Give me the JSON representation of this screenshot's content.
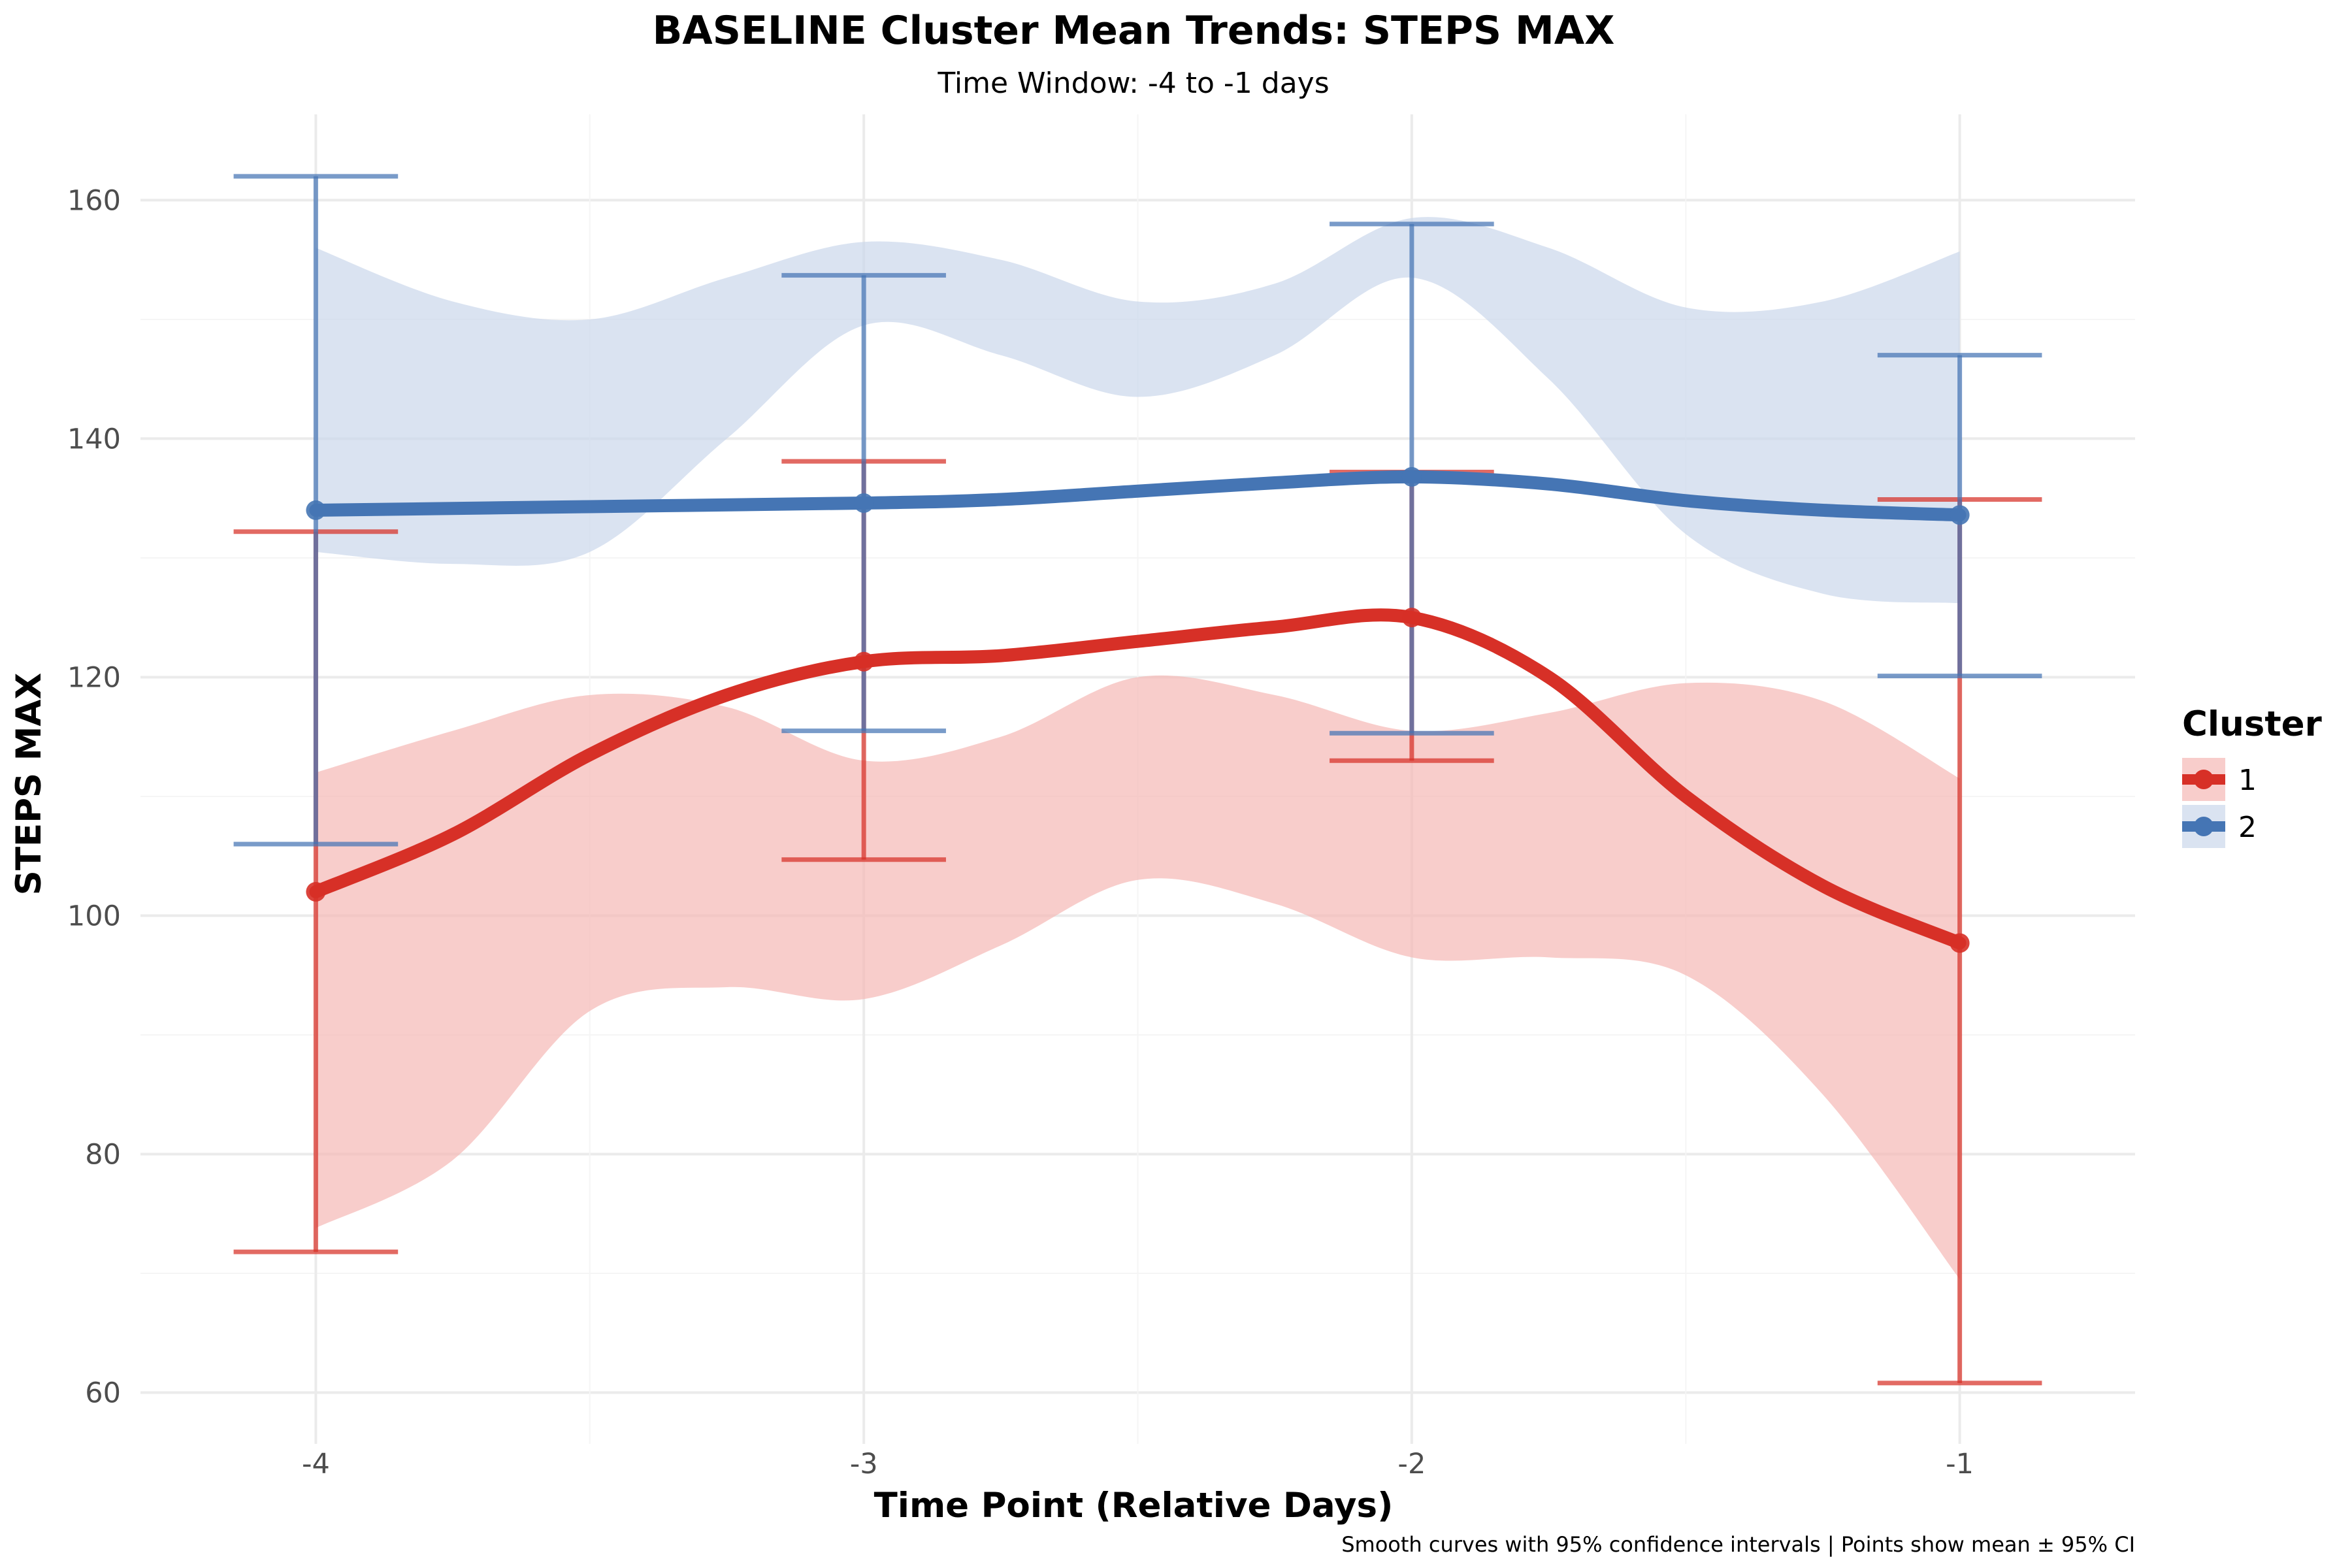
{
  "chart_data": {
    "type": "line",
    "title": "BASELINE Cluster Mean Trends: STEPS MAX",
    "subtitle": "Time Window: -4 to -1 days",
    "xlabel": "Time Point (Relative Days)",
    "ylabel": "STEPS MAX",
    "caption": "Smooth curves with 95% confidence intervals | Points show mean ± 95% CI",
    "x": [
      -4,
      -3,
      -2,
      -1
    ],
    "x_tick_labels": [
      "-4",
      "-3",
      "-2",
      "-1"
    ],
    "y_ticks": [
      60,
      80,
      100,
      120,
      140,
      160
    ],
    "xlim": [
      -4.32,
      -0.68
    ],
    "ylim": [
      55.7,
      167.2
    ],
    "grid": true,
    "legend": {
      "title": "Cluster",
      "position": "right"
    },
    "series": [
      {
        "name": "1",
        "color": "#d73027",
        "band_color": "#f4b6b2",
        "mean": [
          102.0,
          121.3,
          125.0,
          97.7
        ],
        "ci_lower": [
          71.8,
          104.7,
          113.0,
          60.8
        ],
        "ci_upper": [
          132.2,
          138.1,
          137.2,
          134.9
        ],
        "smooth": [
          [
            -4.0,
            102.0
          ],
          [
            -3.75,
            106.8
          ],
          [
            -3.5,
            113.5
          ],
          [
            -3.25,
            118.5
          ],
          [
            -3.0,
            121.3
          ],
          [
            -2.75,
            121.8
          ],
          [
            -2.5,
            123.0
          ],
          [
            -2.25,
            124.2
          ],
          [
            -2.0,
            125.0
          ],
          [
            -1.75,
            120.0
          ],
          [
            -1.5,
            110.0
          ],
          [
            -1.25,
            102.5
          ],
          [
            -1.0,
            97.7
          ]
        ],
        "band_upper": [
          [
            -4.0,
            112.0
          ],
          [
            -3.75,
            115.5
          ],
          [
            -3.5,
            118.5
          ],
          [
            -3.25,
            117.5
          ],
          [
            -3.0,
            113.0
          ],
          [
            -2.75,
            115.0
          ],
          [
            -2.5,
            120.0
          ],
          [
            -2.25,
            118.5
          ],
          [
            -2.0,
            115.5
          ],
          [
            -1.75,
            117.0
          ],
          [
            -1.5,
            119.5
          ],
          [
            -1.25,
            118.0
          ],
          [
            -1.0,
            111.5
          ]
        ],
        "band_lower": [
          [
            -4.0,
            73.8
          ],
          [
            -3.75,
            79.5
          ],
          [
            -3.5,
            92.0
          ],
          [
            -3.25,
            94.0
          ],
          [
            -3.0,
            93.0
          ],
          [
            -2.75,
            97.5
          ],
          [
            -2.5,
            103.0
          ],
          [
            -2.25,
            101.0
          ],
          [
            -2.0,
            96.5
          ],
          [
            -1.75,
            96.5
          ],
          [
            -1.5,
            95.0
          ],
          [
            -1.25,
            85.0
          ],
          [
            -1.0,
            69.5
          ]
        ]
      },
      {
        "name": "2",
        "color": "#4575b4",
        "band_color": "#c9d6ea",
        "mean": [
          134.0,
          134.6,
          136.8,
          133.6
        ],
        "ci_lower": [
          106.0,
          115.5,
          115.3,
          120.1
        ],
        "ci_upper": [
          162.0,
          153.7,
          158.0,
          147.0
        ],
        "smooth": [
          [
            -4.0,
            134.0
          ],
          [
            -3.5,
            134.3
          ],
          [
            -3.0,
            134.6
          ],
          [
            -2.75,
            134.9
          ],
          [
            -2.5,
            135.6
          ],
          [
            -2.25,
            136.3
          ],
          [
            -2.0,
            136.8
          ],
          [
            -1.75,
            136.2
          ],
          [
            -1.5,
            134.8
          ],
          [
            -1.25,
            134.0
          ],
          [
            -1.0,
            133.6
          ]
        ],
        "band_upper": [
          [
            -4.0,
            156.0
          ],
          [
            -3.75,
            151.5
          ],
          [
            -3.5,
            150.0
          ],
          [
            -3.25,
            153.5
          ],
          [
            -3.0,
            156.5
          ],
          [
            -2.75,
            155.0
          ],
          [
            -2.5,
            151.5
          ],
          [
            -2.25,
            153.0
          ],
          [
            -2.0,
            158.5
          ],
          [
            -1.75,
            156.0
          ],
          [
            -1.5,
            151.0
          ],
          [
            -1.25,
            151.5
          ],
          [
            -1.0,
            155.7
          ]
        ],
        "band_lower": [
          [
            -4.0,
            130.5
          ],
          [
            -3.75,
            129.5
          ],
          [
            -3.5,
            130.5
          ],
          [
            -3.25,
            140.0
          ],
          [
            -3.0,
            149.5
          ],
          [
            -2.75,
            147.0
          ],
          [
            -2.5,
            143.5
          ],
          [
            -2.25,
            147.0
          ],
          [
            -2.0,
            153.5
          ],
          [
            -1.75,
            145.0
          ],
          [
            -1.5,
            132.0
          ],
          [
            -1.25,
            127.0
          ],
          [
            -1.0,
            126.2
          ]
        ]
      }
    ]
  }
}
